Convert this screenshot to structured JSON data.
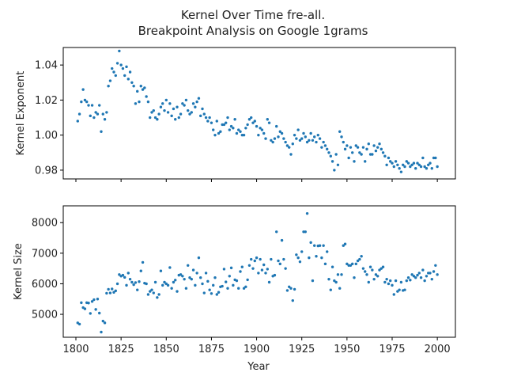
{
  "chart_data": {
    "type": "scatter",
    "title": "Kernel Over Time fre-all.\nBreakpoint Analysis on Google 1grams",
    "title_lines": [
      "Kernel Over Time fre-all.",
      "Breakpoint Analysis on Google 1grams"
    ],
    "xlabel": "Year",
    "color": "#1f77b4",
    "x_ticks": [
      1800,
      1825,
      1850,
      1875,
      1900,
      1925,
      1950,
      1975,
      2000
    ],
    "xlim": [
      1793,
      2010
    ],
    "panels": [
      {
        "name": "kernel-exponent-panel",
        "ylabel": "Kernel Exponent",
        "ylim": [
          0.975,
          1.05
        ],
        "y_ticks": [
          0.98,
          1.0,
          1.02,
          1.04
        ],
        "y_tick_labels": [
          "0.98",
          "1.00",
          "1.02",
          "1.04"
        ],
        "show_x_tick_labels": false,
        "x": [
          1801,
          1802,
          1803,
          1804,
          1805,
          1806,
          1807,
          1808,
          1809,
          1810,
          1811,
          1812,
          1813,
          1814,
          1815,
          1816,
          1817,
          1818,
          1819,
          1820,
          1821,
          1822,
          1823,
          1824,
          1825,
          1826,
          1827,
          1828,
          1829,
          1830,
          1831,
          1832,
          1833,
          1834,
          1835,
          1836,
          1837,
          1838,
          1839,
          1840,
          1841,
          1842,
          1843,
          1844,
          1845,
          1846,
          1847,
          1848,
          1849,
          1850,
          1851,
          1852,
          1853,
          1854,
          1855,
          1856,
          1857,
          1858,
          1859,
          1860,
          1861,
          1862,
          1863,
          1864,
          1865,
          1866,
          1867,
          1868,
          1869,
          1870,
          1871,
          1872,
          1873,
          1874,
          1875,
          1876,
          1877,
          1878,
          1879,
          1880,
          1881,
          1882,
          1883,
          1884,
          1885,
          1886,
          1887,
          1888,
          1889,
          1890,
          1891,
          1892,
          1893,
          1894,
          1895,
          1896,
          1897,
          1898,
          1899,
          1900,
          1901,
          1902,
          1903,
          1904,
          1905,
          1906,
          1907,
          1908,
          1909,
          1910,
          1911,
          1912,
          1913,
          1914,
          1915,
          1916,
          1917,
          1918,
          1919,
          1920,
          1921,
          1922,
          1923,
          1924,
          1925,
          1926,
          1927,
          1928,
          1929,
          1930,
          1931,
          1932,
          1933,
          1934,
          1935,
          1936,
          1937,
          1938,
          1939,
          1940,
          1941,
          1942,
          1943,
          1944,
          1945,
          1946,
          1947,
          1948,
          1949,
          1950,
          1951,
          1952,
          1953,
          1954,
          1955,
          1956,
          1957,
          1958,
          1959,
          1960,
          1961,
          1962,
          1963,
          1964,
          1965,
          1966,
          1967,
          1968,
          1969,
          1970,
          1971,
          1972,
          1973,
          1974,
          1975,
          1976,
          1977,
          1978,
          1979,
          1980,
          1981,
          1982,
          1983,
          1984,
          1985,
          1986,
          1987,
          1988,
          1989,
          1990,
          1991,
          1992,
          1993,
          1994,
          1995,
          1996,
          1997,
          1998,
          1999,
          2000
        ],
        "y": [
          1.008,
          1.012,
          1.019,
          1.026,
          1.02,
          1.019,
          1.017,
          1.011,
          1.017,
          1.01,
          1.013,
          1.012,
          1.017,
          1.002,
          1.012,
          1.009,
          1.013,
          1.028,
          1.031,
          1.038,
          1.036,
          1.034,
          1.041,
          1.048,
          1.04,
          1.038,
          1.034,
          1.039,
          1.032,
          1.036,
          1.03,
          1.028,
          1.018,
          1.025,
          1.019,
          1.028,
          1.026,
          1.027,
          1.022,
          1.019,
          1.01,
          1.013,
          1.014,
          1.01,
          1.009,
          1.012,
          1.016,
          1.018,
          1.014,
          1.02,
          1.013,
          1.018,
          1.011,
          1.015,
          1.009,
          1.016,
          1.01,
          1.012,
          1.018,
          1.017,
          1.02,
          1.014,
          1.012,
          1.013,
          1.018,
          1.016,
          1.019,
          1.021,
          1.011,
          1.015,
          1.012,
          1.01,
          1.008,
          1.01,
          1.007,
          1.003,
          1.0,
          1.008,
          1.001,
          1.002,
          1.006,
          1.006,
          1.007,
          1.01,
          1.003,
          1.005,
          1.004,
          1.009,
          1.001,
          1.003,
          1.002,
          1.0,
          1.0,
          1.004,
          1.006,
          1.009,
          1.01,
          1.007,
          1.008,
          1.005,
          1.0,
          1.004,
          1.003,
          1.001,
          0.998,
          1.009,
          1.007,
          0.997,
          0.996,
          0.998,
          1.005,
          0.999,
          1.002,
          1.001,
          0.998,
          0.996,
          0.994,
          0.993,
          0.989,
          0.995,
          1.0,
          0.998,
          1.003,
          0.997,
          0.998,
          1.001,
          0.999,
          0.996,
          0.997,
          1.001,
          0.997,
          0.999,
          0.996,
          1.0,
          0.998,
          0.993,
          0.996,
          0.994,
          0.992,
          0.99,
          0.988,
          0.985,
          0.98,
          0.989,
          0.983,
          1.002,
          0.999,
          0.996,
          0.992,
          0.994,
          0.987,
          0.993,
          0.99,
          0.985,
          0.994,
          0.993,
          0.99,
          0.989,
          0.993,
          0.985,
          0.992,
          0.995,
          0.989,
          0.989,
          0.994,
          0.991,
          0.993,
          0.995,
          0.992,
          0.99,
          0.988,
          0.983,
          0.987,
          0.985,
          0.984,
          0.982,
          0.985,
          0.983,
          0.981,
          0.979,
          0.983,
          0.982,
          0.985,
          0.984,
          0.982,
          0.983,
          0.984,
          0.981,
          0.984,
          0.983,
          0.982,
          0.987,
          0.982,
          0.981,
          0.983,
          0.984,
          0.981,
          0.987,
          0.987,
          0.982
        ]
      },
      {
        "name": "kernel-size-panel",
        "ylabel": "Kernel Size",
        "ylim": [
          4250,
          8550
        ],
        "y_ticks": [
          5000,
          6000,
          7000,
          8000
        ],
        "y_tick_labels": [
          "5000",
          "6000",
          "7000",
          "8000"
        ],
        "show_x_tick_labels": true,
        "x": [
          1801,
          1802,
          1803,
          1804,
          1805,
          1806,
          1807,
          1808,
          1809,
          1810,
          1811,
          1812,
          1813,
          1814,
          1815,
          1816,
          1817,
          1818,
          1819,
          1820,
          1821,
          1822,
          1823,
          1824,
          1825,
          1826,
          1827,
          1828,
          1829,
          1830,
          1831,
          1832,
          1833,
          1834,
          1835,
          1836,
          1837,
          1838,
          1839,
          1840,
          1841,
          1842,
          1843,
          1844,
          1845,
          1846,
          1847,
          1848,
          1849,
          1850,
          1851,
          1852,
          1853,
          1854,
          1855,
          1856,
          1857,
          1858,
          1859,
          1860,
          1861,
          1862,
          1863,
          1864,
          1865,
          1866,
          1867,
          1868,
          1869,
          1870,
          1871,
          1872,
          1873,
          1874,
          1875,
          1876,
          1877,
          1878,
          1879,
          1880,
          1881,
          1882,
          1883,
          1884,
          1885,
          1886,
          1887,
          1888,
          1889,
          1890,
          1891,
          1892,
          1893,
          1894,
          1895,
          1896,
          1897,
          1898,
          1899,
          1900,
          1901,
          1902,
          1903,
          1904,
          1905,
          1906,
          1907,
          1908,
          1909,
          1910,
          1911,
          1912,
          1913,
          1914,
          1915,
          1916,
          1917,
          1918,
          1919,
          1920,
          1921,
          1922,
          1923,
          1924,
          1925,
          1926,
          1927,
          1928,
          1929,
          1930,
          1931,
          1932,
          1933,
          1934,
          1935,
          1936,
          1937,
          1938,
          1939,
          1940,
          1941,
          1942,
          1943,
          1944,
          1945,
          1946,
          1947,
          1948,
          1949,
          1950,
          1951,
          1952,
          1953,
          1954,
          1955,
          1956,
          1957,
          1958,
          1959,
          1960,
          1961,
          1962,
          1963,
          1964,
          1965,
          1966,
          1967,
          1968,
          1969,
          1970,
          1971,
          1972,
          1973,
          1974,
          1975,
          1976,
          1977,
          1978,
          1979,
          1980,
          1981,
          1982,
          1983,
          1984,
          1985,
          1986,
          1987,
          1988,
          1989,
          1990,
          1991,
          1992,
          1993,
          1994,
          1995,
          1996,
          1997,
          1998,
          1999,
          2000
        ],
        "y": [
          4720,
          4680,
          5380,
          5220,
          5180,
          5380,
          5370,
          5030,
          5420,
          5480,
          5160,
          5500,
          5040,
          4420,
          4780,
          4720,
          5690,
          5820,
          5700,
          5830,
          5720,
          5770,
          6000,
          6300,
          6250,
          6280,
          6210,
          5950,
          6350,
          6150,
          6050,
          5970,
          6040,
          5800,
          6070,
          6420,
          6700,
          6020,
          6000,
          5650,
          5750,
          5800,
          5700,
          6050,
          5550,
          5650,
          6420,
          5950,
          6050,
          6000,
          5950,
          6530,
          5850,
          6050,
          6120,
          5750,
          6280,
          6300,
          6250,
          6150,
          5850,
          6600,
          6200,
          6150,
          6450,
          5950,
          6350,
          6850,
          6200,
          6000,
          5700,
          6350,
          6080,
          5800,
          5680,
          5950,
          6200,
          5650,
          5720,
          5900,
          5920,
          6480,
          6060,
          5850,
          6250,
          6520,
          5950,
          6130,
          6100,
          5850,
          6400,
          6550,
          5850,
          5900,
          6130,
          6600,
          6800,
          6500,
          6750,
          6850,
          6350,
          6800,
          6450,
          6620,
          6350,
          6480,
          6050,
          6800,
          6250,
          6280,
          7700,
          6750,
          6650,
          7420,
          6800,
          6500,
          5780,
          5900,
          5850,
          5450,
          5820,
          6950,
          6850,
          6720,
          7050,
          7700,
          7700,
          8300,
          6850,
          7350,
          6100,
          7250,
          6900,
          7240,
          7250,
          6850,
          7250,
          6650,
          7050,
          6150,
          5800,
          6550,
          6100,
          6050,
          6300,
          5850,
          6300,
          7250,
          7300,
          6650,
          6600,
          6600,
          6650,
          6200,
          6650,
          6750,
          6800,
          6900,
          6500,
          6400,
          6300,
          6050,
          6550,
          6450,
          6150,
          6300,
          6250,
          6450,
          6500,
          6550,
          6050,
          6150,
          6000,
          6100,
          5950,
          5650,
          6100,
          5750,
          5800,
          6050,
          5780,
          5800,
          6100,
          6200,
          6120,
          6300,
          6250,
          6200,
          6280,
          6350,
          6200,
          6450,
          6100,
          6250,
          6350,
          6350,
          6150,
          6400,
          6600,
          6300
        ]
      }
    ]
  }
}
